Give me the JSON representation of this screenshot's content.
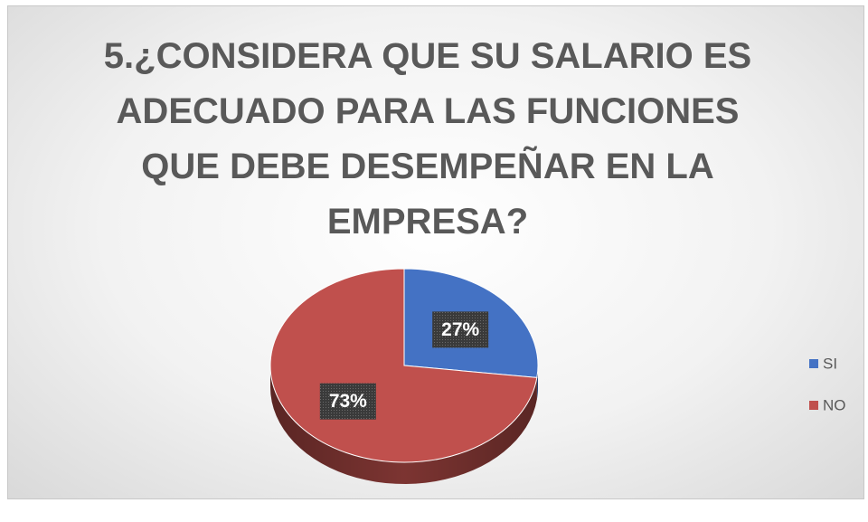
{
  "chart_data": {
    "type": "pie",
    "title": "5.¿CONSIDERA QUE SU SALARIO ES ADECUADO PARA LAS FUNCIONES QUE DEBE DESEMPEÑAR EN LA EMPRESA?",
    "categories": [
      "SI",
      "NO"
    ],
    "values": [
      27,
      73
    ],
    "value_labels": [
      "27%",
      "73%"
    ],
    "colors": [
      "#4472c4",
      "#c0504d"
    ],
    "legend": "right"
  }
}
